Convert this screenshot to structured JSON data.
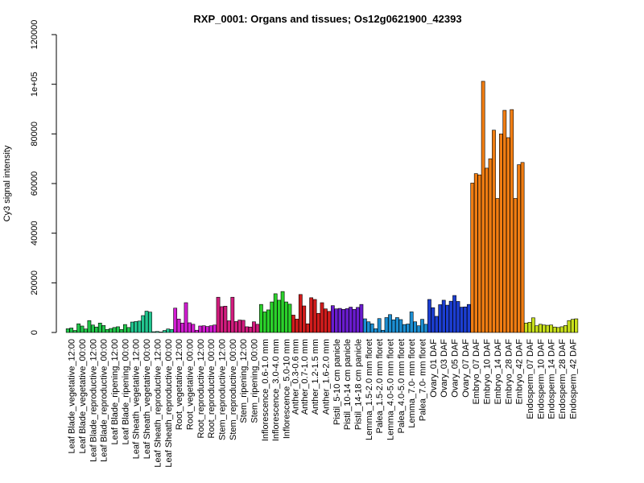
{
  "chart_data": {
    "type": "bar",
    "title": "RXP_0001: Organs and tissues; Os12g0621900_42393",
    "xlabel": "",
    "ylabel": "Cy3 signal intensity",
    "ylim": [
      0,
      120000
    ],
    "yticks": [
      0,
      20000,
      40000,
      60000,
      80000,
      100000,
      120000
    ],
    "ytick_labels": [
      "0",
      "20000",
      "40000",
      "60000",
      "80000",
      "1e+05",
      "120000"
    ],
    "grid": false,
    "legend": "none",
    "groups": [
      {
        "label": "Leaf Blade_vegetative_12:00",
        "color": "#22c64a",
        "values": [
          1500,
          1800,
          800
        ]
      },
      {
        "label": "Leaf Blade_vegetative_00:00",
        "color": "#22c64a",
        "values": [
          3500,
          2600,
          1400
        ]
      },
      {
        "label": "Leaf Blade_reproductive_12:00",
        "color": "#22c64a",
        "values": [
          4800,
          3000,
          2200
        ]
      },
      {
        "label": "Leaf Blade_reproductive_00:00",
        "color": "#22c64a",
        "values": [
          3800,
          2800,
          1200
        ]
      },
      {
        "label": "Leaf Blade_ripening_12:00",
        "color": "#22c64a",
        "values": [
          1600,
          2000,
          2300
        ]
      },
      {
        "label": "Leaf Blade_ripening_00:00",
        "color": "#22c64a",
        "values": [
          1200,
          3200,
          2000
        ]
      },
      {
        "label": "Leaf Sheath_vegetative_12:00",
        "color": "#22c690",
        "values": [
          4200,
          4400,
          4600
        ]
      },
      {
        "label": "Leaf Sheath_vegetative_00:00",
        "color": "#22c690",
        "values": [
          6800,
          8600,
          8200
        ]
      },
      {
        "label": "Leaf Sheath_reproductive_12:00",
        "color": "#22c690",
        "values": [
          300,
          400,
          200
        ]
      },
      {
        "label": "Leaf Sheath_reproductive_00:00",
        "color": "#22c690",
        "values": [
          800,
          1400,
          1200
        ]
      },
      {
        "label": "Root_vegetative_12:00",
        "color": "#d21cd2",
        "values": [
          9800,
          5400,
          3800
        ]
      },
      {
        "label": "Root_vegetative_00:00",
        "color": "#d21cd2",
        "values": [
          12000,
          3900,
          3300
        ]
      },
      {
        "label": "Root_reproductive_12:00",
        "color": "#d21cd2",
        "values": [
          900,
          2600,
          2700
        ]
      },
      {
        "label": "Root_reproductive_00:00",
        "color": "#d21cd2",
        "values": [
          2400,
          2700,
          3000
        ]
      },
      {
        "label": "Stem_reproductive_12:00",
        "color": "#d21c7e",
        "values": [
          14200,
          10400,
          10600
        ]
      },
      {
        "label": "Stem_reproductive_00:00",
        "color": "#d21c7e",
        "values": [
          4700,
          14200,
          4400
        ]
      },
      {
        "label": "Stem_ripening_12:00",
        "color": "#d21c7e",
        "values": [
          5000,
          4900,
          2300
        ]
      },
      {
        "label": "Stem_ripening_00:00",
        "color": "#d21c7e",
        "values": [
          2200,
          4300,
          3300
        ]
      },
      {
        "label": "Inflorescence_0.6-1.0 mm",
        "color": "#2bd12b",
        "values": [
          11300,
          8300,
          9100
        ]
      },
      {
        "label": "Inflorescence_3.0-4.0 mm",
        "color": "#2bd12b",
        "values": [
          12300,
          15600,
          13000
        ]
      },
      {
        "label": "Inflorescence_5.0-10 mm",
        "color": "#2bd12b",
        "values": [
          16500,
          12300,
          11400
        ]
      },
      {
        "label": "Anther_0.3-0.6 mm",
        "color": "#d21c1c",
        "values": [
          7000,
          5400
        ]
      },
      {
        "label": "Anther_0.7-1.0 mm",
        "color": "#d21c1c",
        "values": [
          15300,
          10700,
          3500
        ]
      },
      {
        "label": "Anther_1.2-1.5 mm",
        "color": "#d21c1c",
        "values": [
          14000,
          13300,
          7700
        ]
      },
      {
        "label": "Anther_1.6-2.0 mm",
        "color": "#d21c1c",
        "values": [
          12000,
          9500,
          8500
        ]
      },
      {
        "label": "Pistil_5-10 cm panicle",
        "color": "#6a1ccf",
        "values": [
          10800,
          9500,
          9700
        ]
      },
      {
        "label": "Pistil_10-14 cm panicle",
        "color": "#6a1ccf",
        "values": [
          9300,
          9600,
          10200
        ]
      },
      {
        "label": "Pistil_14-18 cm panicle",
        "color": "#6a1ccf",
        "values": [
          9300,
          10100,
          11300
        ]
      },
      {
        "label": "Lemma_1.5-2.0 mm floret",
        "color": "#1c8ed2",
        "values": [
          5500,
          4300,
          3500
        ]
      },
      {
        "label": "Palea_1.5-2.0 mm floret",
        "color": "#1c8ed2",
        "values": [
          1500,
          5600,
          900
        ]
      },
      {
        "label": "Lemma_4.0-5.0 mm floret",
        "color": "#1c8ed2",
        "values": [
          6000,
          7200,
          5100
        ]
      },
      {
        "label": "Palea_4.0-5.0 mm floret",
        "color": "#1c8ed2",
        "values": [
          6000,
          5200,
          3200
        ]
      },
      {
        "label": "Lemma_7.0- mm floret",
        "color": "#1c8ed2",
        "values": [
          3400,
          8300,
          4300
        ]
      },
      {
        "label": "Palea_7.0- mm floret",
        "color": "#1c8ed2",
        "values": [
          2700,
          5300,
          3300
        ]
      },
      {
        "label": "Ovary_01 DAF",
        "color": "#1c3ed2",
        "values": [
          13300,
          10000,
          6500
        ]
      },
      {
        "label": "Ovary_03 DAF",
        "color": "#1c3ed2",
        "values": [
          11200,
          13000,
          11000
        ]
      },
      {
        "label": "Ovary_05 DAF",
        "color": "#1c3ed2",
        "values": [
          12600,
          14900,
          12500
        ]
      },
      {
        "label": "Ovary_07 DAF",
        "color": "#1c3ed2",
        "values": [
          10200,
          10300,
          11300
        ]
      },
      {
        "label": "Embryo_07 DAF",
        "color": "#f07d12",
        "values": [
          60200,
          64000,
          63500
        ]
      },
      {
        "label": "Embryo_10 DAF",
        "color": "#f07d12",
        "values": [
          101200,
          66200,
          70000
        ]
      },
      {
        "label": "Embryo_14 DAF",
        "color": "#f07d12",
        "values": [
          81500,
          54000,
          80000
        ]
      },
      {
        "label": "Embryo_28 DAF",
        "color": "#f07d12",
        "values": [
          89500,
          78500,
          89800
        ]
      },
      {
        "label": "Embryo_42 DAF",
        "color": "#f07d12",
        "values": [
          54000,
          67600,
          68500
        ]
      },
      {
        "label": "Endosperm_07 DAF",
        "color": "#c8e01c",
        "values": [
          3800,
          4100,
          5900
        ]
      },
      {
        "label": "Endosperm_10 DAF",
        "color": "#c8e01c",
        "values": [
          2700,
          3300,
          3000
        ]
      },
      {
        "label": "Endosperm_14 DAF",
        "color": "#c8e01c",
        "values": [
          2900,
          3000,
          2200
        ]
      },
      {
        "label": "Endosperm_28 DAF",
        "color": "#c8e01c",
        "values": [
          2000,
          2300,
          2800
        ]
      },
      {
        "label": "Endosperm_42 DAF",
        "color": "#c8e01c",
        "values": [
          4800,
          5300,
          5500
        ]
      }
    ]
  }
}
